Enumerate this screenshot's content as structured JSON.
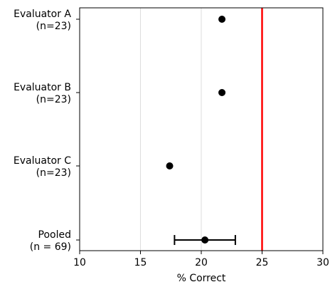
{
  "chart_data": {
    "type": "scatter",
    "orientation": "horizontal",
    "xlabel": "% Correct",
    "xlim": [
      10,
      30
    ],
    "xticks": [
      10,
      15,
      20,
      25,
      30
    ],
    "grid_vertical_lines": [
      15,
      20
    ],
    "reference_line": {
      "x": 25,
      "color": "#ff0000"
    },
    "categories": [
      {
        "line1": "Evaluator A",
        "line2": "(n=23)"
      },
      {
        "line1": "Evaluator B",
        "line2": "(n=23)"
      },
      {
        "line1": "Evaluator C",
        "line2": "(n=23)"
      },
      {
        "line1": "Pooled",
        "line2": "(n = 69)"
      }
    ],
    "points": [
      {
        "category": "Evaluator A",
        "x": 21.7
      },
      {
        "category": "Evaluator B",
        "x": 21.7
      },
      {
        "category": "Evaluator C",
        "x": 17.4
      },
      {
        "category": "Pooled",
        "x": 20.3,
        "error_low": 17.8,
        "error_high": 22.8
      }
    ],
    "colors": {
      "point": "#000000",
      "grid": "#dddddd",
      "reference": "#ff0000"
    }
  }
}
